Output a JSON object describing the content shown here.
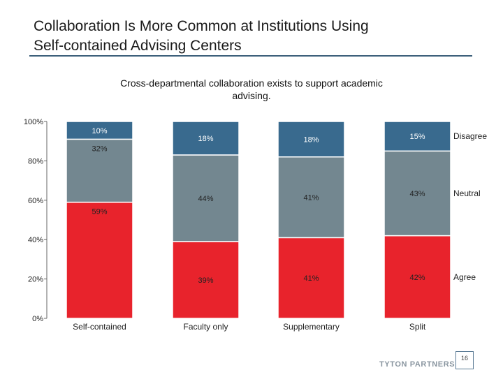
{
  "title_line1": "Collaboration Is More Common at Institutions Using",
  "title_line2": "Self-contained Advising Centers",
  "footer": {
    "logo_text": "TYTON PARTNERS",
    "page_number": "16"
  },
  "colors": {
    "agree": "#e8232c",
    "neutral": "#738790",
    "disagree": "#396a8e",
    "accent": "#3c5f7a"
  },
  "chart_data": {
    "type": "bar",
    "stacked": true,
    "title": "Cross-departmental collaboration exists to support academic advising.",
    "categories": [
      "Self-contained",
      "Faculty only",
      "Supplementary",
      "Split"
    ],
    "series": [
      {
        "name": "Agree",
        "values": [
          59,
          39,
          41,
          42
        ],
        "labels": [
          "59%",
          "39%",
          "41%",
          "42%"
        ]
      },
      {
        "name": "Neutral",
        "values": [
          32,
          44,
          41,
          43
        ],
        "labels": [
          "32%",
          "44%",
          "41%",
          "43%"
        ]
      },
      {
        "name": "Disagree",
        "values": [
          10,
          18,
          18,
          15
        ],
        "labels": [
          "10%",
          "18%",
          "18%",
          "15%"
        ]
      }
    ],
    "ylim": [
      0,
      100
    ],
    "yticks": [
      0,
      20,
      40,
      60,
      80,
      100
    ],
    "ytick_labels": [
      "0%",
      "20%",
      "40%",
      "60%",
      "80%",
      "100%"
    ],
    "legend_position": "right",
    "grid": false
  }
}
